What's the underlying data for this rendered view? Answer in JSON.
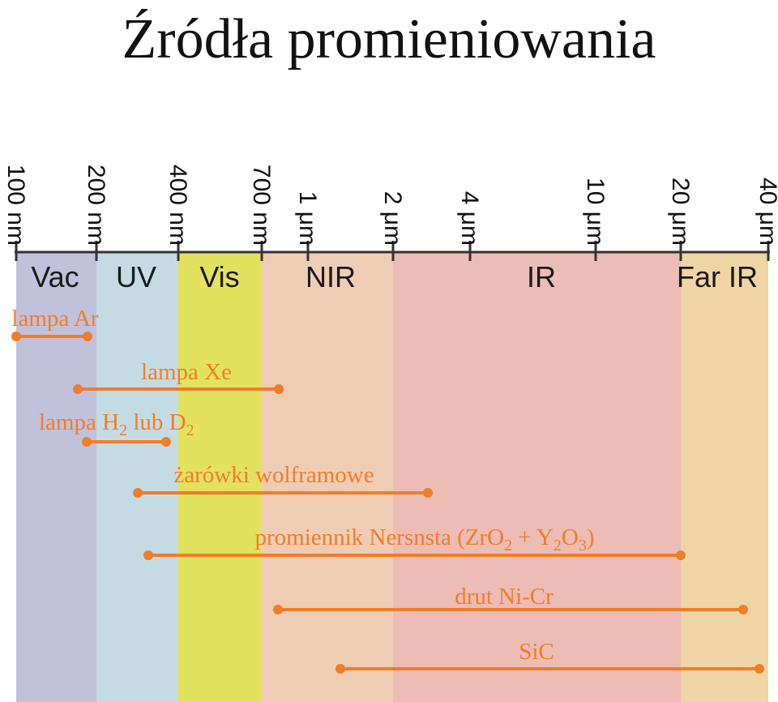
{
  "title": "Źródła promieniowania",
  "colors": {
    "accent": "#f07d2a",
    "axis": "#333333"
  },
  "ticks": [
    {
      "label": "100 nm"
    },
    {
      "label": "200 nm"
    },
    {
      "label": "400 nm"
    },
    {
      "label": "700 nm"
    },
    {
      "label": "1 μm"
    },
    {
      "label": "2 μm"
    },
    {
      "label": "4 μm"
    },
    {
      "label": "10 μm"
    },
    {
      "label": "20 μm"
    },
    {
      "label": "40 μm"
    }
  ],
  "regions": [
    {
      "label": "Vac",
      "color": "#c2c1dc"
    },
    {
      "label": "UV",
      "color": "#c5dbe4"
    },
    {
      "label": "Vis",
      "color": "#e3e25f"
    },
    {
      "label": "NIR",
      "color": "#efcdb5"
    },
    {
      "label": "",
      "color": "#ecbcb5"
    },
    {
      "label": "IR",
      "color": "#ecbcb5"
    },
    {
      "label": "Far IR",
      "color": "#efd5a6"
    }
  ],
  "sources": [
    {
      "name": "lampa Ar",
      "parts": [
        "lampa Ar"
      ]
    },
    {
      "name": "lampa Xe",
      "parts": [
        "lampa Xe"
      ]
    },
    {
      "name": "lampa H2 lub D2",
      "parts": [
        "lampa H",
        "2",
        " lub D",
        "2"
      ]
    },
    {
      "name": "żarówki wolframowe",
      "parts": [
        "żarówki wolframowe"
      ]
    },
    {
      "name": "promiennik Nersnsta (ZrO2 + Y2O3)",
      "parts": [
        "promiennik Nersnsta (ZrO",
        "2",
        " + Y",
        "2",
        "O",
        "3",
        ")"
      ]
    },
    {
      "name": "drut Ni-Cr",
      "parts": [
        "drut Ni-Cr"
      ]
    },
    {
      "name": "SiC",
      "parts": [
        "SiC"
      ]
    }
  ]
}
